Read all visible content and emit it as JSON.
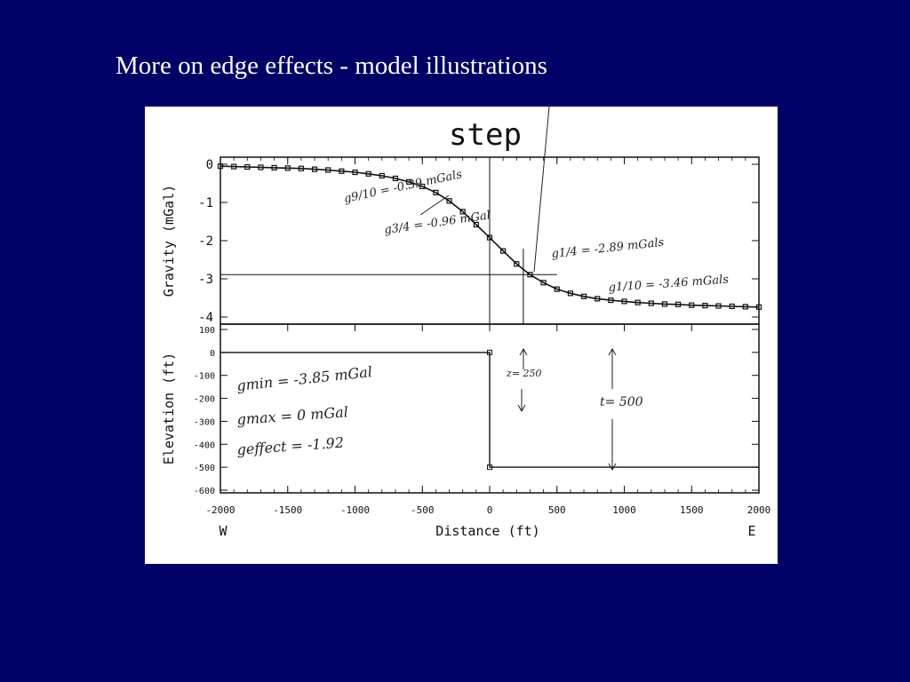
{
  "slide": {
    "title": "More on edge effects - model illustrations"
  },
  "chart_data": [
    {
      "type": "line",
      "title": "step",
      "ylabel": "Gravity (mGal)",
      "xlim": [
        -2000,
        2000
      ],
      "ylim": [
        -4,
        0
      ],
      "yticks": [
        "0",
        "-1",
        "-2",
        "-3",
        "-4"
      ],
      "series": [
        {
          "x": [
            -2000,
            -1900,
            -1800,
            -1700,
            -1600,
            -1500,
            -1400,
            -1300,
            -1200,
            -1100,
            -1000,
            -900,
            -800,
            -700,
            -600,
            -500,
            -400,
            -300,
            -200,
            -100,
            0,
            100,
            200,
            300,
            400,
            500,
            600,
            700,
            800,
            900,
            1000,
            1100,
            1200,
            1300,
            1400,
            1500,
            1600,
            1700,
            1800,
            1900,
            2000
          ],
          "values": [
            -0.05,
            -0.06,
            -0.07,
            -0.08,
            -0.09,
            -0.1,
            -0.11,
            -0.13,
            -0.15,
            -0.18,
            -0.21,
            -0.25,
            -0.3,
            -0.37,
            -0.46,
            -0.58,
            -0.74,
            -0.96,
            -1.24,
            -1.58,
            -1.92,
            -2.27,
            -2.61,
            -2.89,
            -3.1,
            -3.27,
            -3.38,
            -3.46,
            -3.52,
            -3.56,
            -3.59,
            -3.62,
            -3.64,
            -3.66,
            -3.67,
            -3.69,
            -3.7,
            -3.71,
            -3.72,
            -3.73,
            -3.74
          ]
        }
      ],
      "reference_line_y": -2.89,
      "annotations": {
        "g9_10": "g9/10 = -0.39 mGals",
        "g3_4": "g3/4 = -0.96 mGal",
        "g1_4": "g1/4 = -2.89 mGals",
        "g1_10": "g1/10 = -3.46 mGals"
      }
    },
    {
      "type": "line",
      "ylabel": "Elevation (ft)",
      "xlabel": "Distance (ft)",
      "xlim": [
        -2000,
        2000
      ],
      "ylim": [
        -600,
        100
      ],
      "xticks": [
        "-2000",
        "-1500",
        "-1000",
        "-500",
        "0",
        "500",
        "1000",
        "1500",
        "2000"
      ],
      "yticks": [
        "100",
        "0",
        "-100",
        "-200",
        "-300",
        "-400",
        "-500",
        "-600"
      ],
      "series": [
        {
          "x": [
            -2000,
            0,
            0,
            2000
          ],
          "values": [
            0,
            0,
            -500,
            -500
          ]
        }
      ],
      "direction_left": "W",
      "direction_right": "E",
      "annotations": {
        "gmin": "gmin = -3.85 mGal",
        "gmax": "gmax = 0 mGal",
        "geffect": "geffect = -1.92",
        "z": "z= 250",
        "t": "t= 500"
      }
    }
  ]
}
